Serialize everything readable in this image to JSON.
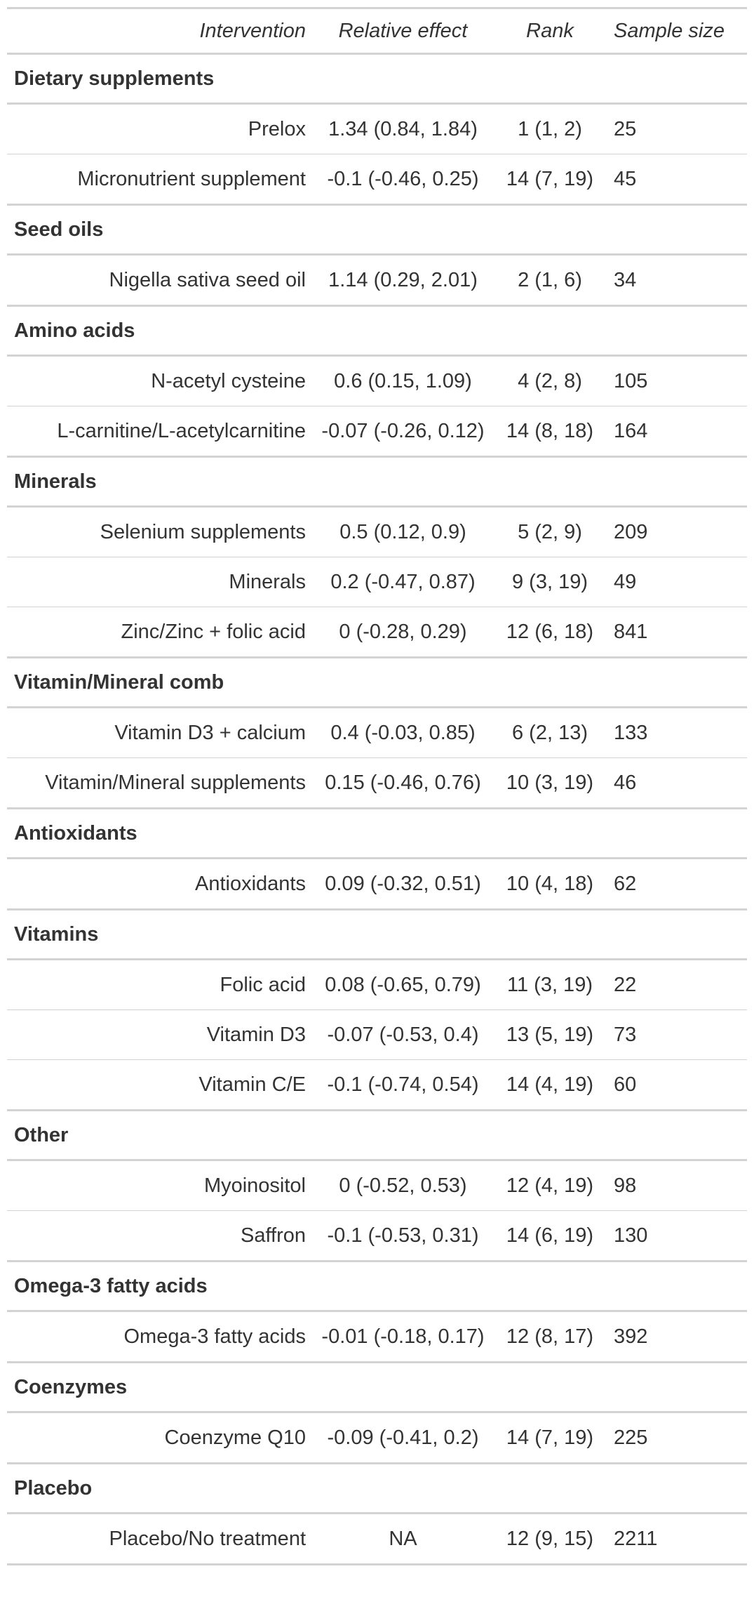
{
  "headers": {
    "intervention": "Intervention",
    "relative_effect": "Relative effect",
    "rank": "Rank",
    "sample_size": "Sample size"
  },
  "groups": [
    {
      "name": "Dietary supplements",
      "rows": [
        {
          "intervention": "Prelox",
          "effect": "1.34 (0.84, 1.84)",
          "rank": "1 (1, 2)",
          "size": "25"
        },
        {
          "intervention": "Micronutrient supplement",
          "effect": "-0.1 (-0.46, 0.25)",
          "rank": "14 (7, 19)",
          "size": "45"
        }
      ]
    },
    {
      "name": "Seed oils",
      "rows": [
        {
          "intervention": "Nigella sativa seed oil",
          "effect": "1.14 (0.29, 2.01)",
          "rank": "2 (1, 6)",
          "size": "34"
        }
      ]
    },
    {
      "name": "Amino acids",
      "rows": [
        {
          "intervention": "N-acetyl cysteine",
          "effect": "0.6 (0.15, 1.09)",
          "rank": "4 (2, 8)",
          "size": "105"
        },
        {
          "intervention": "L-carnitine/L-acetylcarnitine",
          "effect": "-0.07 (-0.26, 0.12)",
          "rank": "14 (8, 18)",
          "size": "164"
        }
      ]
    },
    {
      "name": "Minerals",
      "rows": [
        {
          "intervention": "Selenium supplements",
          "effect": "0.5 (0.12, 0.9)",
          "rank": "5 (2, 9)",
          "size": "209"
        },
        {
          "intervention": "Minerals",
          "effect": "0.2 (-0.47, 0.87)",
          "rank": "9 (3, 19)",
          "size": "49"
        },
        {
          "intervention": "Zinc/Zinc + folic acid",
          "effect": "0 (-0.28, 0.29)",
          "rank": "12 (6, 18)",
          "size": "841"
        }
      ]
    },
    {
      "name": "Vitamin/Mineral comb",
      "rows": [
        {
          "intervention": "Vitamin D3 + calcium",
          "effect": "0.4 (-0.03, 0.85)",
          "rank": "6 (2, 13)",
          "size": "133"
        },
        {
          "intervention": "Vitamin/Mineral supplements",
          "effect": "0.15 (-0.46, 0.76)",
          "rank": "10 (3, 19)",
          "size": "46"
        }
      ]
    },
    {
      "name": "Antioxidants",
      "rows": [
        {
          "intervention": "Antioxidants",
          "effect": "0.09 (-0.32, 0.51)",
          "rank": "10 (4, 18)",
          "size": "62"
        }
      ]
    },
    {
      "name": "Vitamins",
      "rows": [
        {
          "intervention": "Folic acid",
          "effect": "0.08 (-0.65, 0.79)",
          "rank": "11 (3, 19)",
          "size": "22"
        },
        {
          "intervention": "Vitamin D3",
          "effect": "-0.07 (-0.53, 0.4)",
          "rank": "13 (5, 19)",
          "size": "73"
        },
        {
          "intervention": "Vitamin C/E",
          "effect": "-0.1 (-0.74, 0.54)",
          "rank": "14 (4, 19)",
          "size": "60"
        }
      ]
    },
    {
      "name": "Other",
      "rows": [
        {
          "intervention": "Myoinositol",
          "effect": "0 (-0.52, 0.53)",
          "rank": "12 (4, 19)",
          "size": "98"
        },
        {
          "intervention": "Saffron",
          "effect": "-0.1 (-0.53, 0.31)",
          "rank": "14 (6, 19)",
          "size": "130"
        }
      ]
    },
    {
      "name": "Omega-3 fatty acids",
      "rows": [
        {
          "intervention": "Omega-3 fatty acids",
          "effect": "-0.01 (-0.18, 0.17)",
          "rank": "12 (8, 17)",
          "size": "392"
        }
      ]
    },
    {
      "name": "Coenzymes",
      "rows": [
        {
          "intervention": "Coenzyme Q10",
          "effect": "-0.09 (-0.41, 0.2)",
          "rank": "14 (7, 19)",
          "size": "225"
        }
      ]
    },
    {
      "name": "Placebo",
      "rows": [
        {
          "intervention": "Placebo/No treatment",
          "effect": "NA",
          "rank": "12 (9, 15)",
          "size": "2211"
        }
      ]
    }
  ]
}
